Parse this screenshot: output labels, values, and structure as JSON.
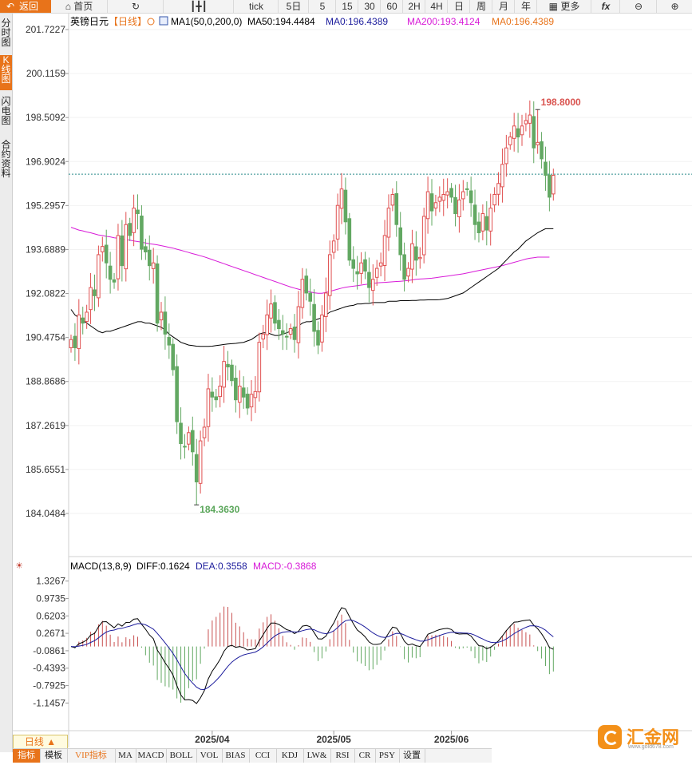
{
  "toolbar": {
    "back": "返回",
    "home": "首页",
    "items": [
      "tick",
      "5日",
      "5",
      "15",
      "30",
      "60",
      "2H",
      "4H",
      "日",
      "周",
      "月",
      "年"
    ],
    "more": "更多",
    "fx": "fx"
  },
  "sidebar": [
    "分时图",
    "K线图",
    "闪电图",
    "合约资料"
  ],
  "sidebar_active": 1,
  "bottom": {
    "daily": "日线 ▲",
    "tabs": [
      "指标",
      "模板",
      "VIP指标",
      "MA",
      "MACD",
      "BOLL",
      "VOL",
      "BIAS",
      "CCI",
      "KDJ",
      "LW&",
      "RSI",
      "CR",
      "PSY",
      "设置"
    ]
  },
  "logo": {
    "name": "汇金网",
    "url": "www.gold678.com"
  },
  "chart_data": {
    "type": "candlestick",
    "title": "英镑日元",
    "period": "日线",
    "legend": [
      {
        "text": "MA1(50,0,200,0)",
        "color": "#000000"
      },
      {
        "text": "MA50:194.4484",
        "color": "#000000"
      },
      {
        "text": "MA0:196.4389",
        "color": "#1c1c9c"
      },
      {
        "text": "MA200:193.4124",
        "color": "#d81ad8"
      },
      {
        "text": "MA0:196.4389",
        "color": "#e8731a"
      }
    ],
    "y_ticks": [
      "201.7227",
      "200.1159",
      "198.5092",
      "196.9024",
      "195.2957",
      "193.6889",
      "192.0822",
      "190.4754",
      "188.8686",
      "187.2619",
      "185.6551",
      "184.0484"
    ],
    "ylim": [
      184.0484,
      201.7227
    ],
    "x_labels": [
      {
        "index": 36,
        "label": "2025/04"
      },
      {
        "index": 67,
        "label": "2025/05"
      },
      {
        "index": 97,
        "label": "2025/06"
      }
    ],
    "last_price": 196.4389,
    "high_mark": {
      "index": 119,
      "value": 198.8,
      "label": "198.8000"
    },
    "low_mark": {
      "index": 32,
      "value": 184.363,
      "label": "184.3630"
    },
    "up_color": "#e05050",
    "down_color": "#62a862",
    "ma50_color": "#000000",
    "ma200_color": "#d81ad8",
    "closes": [
      190.4,
      190.1,
      191.3,
      191.0,
      191.4,
      192.3,
      192.0,
      193.5,
      193.8,
      193.2,
      192.6,
      192.5,
      194.2,
      193.1,
      194.6,
      194.2,
      195.2,
      195.0,
      193.7,
      193.6,
      193.1,
      193.2,
      191.0,
      191.4,
      190.6,
      190.2,
      189.3,
      187.4,
      186.6,
      186.5,
      187.0,
      186.3,
      185.2,
      186.7,
      187.2,
      188.6,
      188.3,
      188.2,
      188.7,
      189.6,
      189.4,
      188.9,
      188.2,
      188.7,
      188.3,
      187.9,
      188.4,
      188.5,
      190.3,
      190.6,
      191.3,
      191.7,
      191.0,
      190.8,
      190.6,
      190.5,
      190.8,
      190.4,
      191.6,
      192.6,
      192.1,
      191.8,
      190.7,
      190.2,
      191.3,
      192.1,
      193.5,
      194.0,
      195.3,
      195.9,
      194.7,
      193.3,
      193.0,
      192.8,
      193.2,
      192.9,
      192.3,
      192.6,
      193.0,
      193.2,
      194.2,
      195.2,
      195.7,
      194.6,
      193.5,
      192.6,
      193.0,
      193.9,
      193.3,
      193.4,
      194.9,
      195.8,
      195.1,
      195.4,
      195.6,
      195.7,
      195.8,
      195.6,
      195.0,
      195.5,
      195.8,
      195.9,
      195.4,
      194.6,
      194.3,
      195.0,
      194.4,
      195.2,
      195.7,
      196.1,
      196.8,
      197.4,
      197.8,
      198.2,
      197.8,
      198.2,
      198.4,
      198.6,
      197.4,
      197.6,
      197.0,
      196.4,
      195.6,
      196.4
    ],
    "ma50": [
      191.5,
      191.3,
      191.2,
      191.1,
      191.0,
      190.9,
      190.8,
      190.7,
      190.65,
      190.7,
      190.7,
      190.75,
      190.8,
      190.85,
      190.9,
      190.95,
      191.0,
      191.05,
      191.05,
      191.0,
      191.0,
      190.95,
      190.9,
      190.85,
      190.75,
      190.6,
      190.5,
      190.4,
      190.3,
      190.25,
      190.2,
      190.18,
      190.16,
      190.15,
      190.15,
      190.15,
      190.16,
      190.18,
      190.2,
      190.22,
      190.24,
      190.25,
      190.26,
      190.28,
      190.3,
      190.35,
      190.4,
      190.5,
      190.6,
      190.65,
      190.65,
      190.6,
      190.55,
      190.55,
      190.6,
      190.65,
      190.7,
      190.8,
      190.9,
      191.0,
      191.05,
      191.05,
      191.1,
      191.15,
      191.2,
      191.3,
      191.4,
      191.45,
      191.5,
      191.55,
      191.6,
      191.63,
      191.65,
      191.7,
      191.7,
      191.72,
      191.72,
      191.75,
      191.75,
      191.75,
      191.75,
      191.8,
      191.8,
      191.8,
      191.82,
      191.82,
      191.82,
      191.83,
      191.83,
      191.84,
      191.84,
      191.85,
      191.85,
      191.85,
      191.86,
      191.88,
      191.9,
      191.95,
      192.0,
      192.05,
      192.1,
      192.2,
      192.3,
      192.4,
      192.5,
      192.6,
      192.7,
      192.8,
      192.9,
      193.0,
      193.15,
      193.3,
      193.45,
      193.6,
      193.7,
      193.85,
      194.0,
      194.1,
      194.2,
      194.3,
      194.38,
      194.45,
      194.45,
      194.45
    ],
    "ma200": [
      194.5,
      194.45,
      194.4,
      194.37,
      194.33,
      194.3,
      194.26,
      194.22,
      194.2,
      194.17,
      194.15,
      194.12,
      194.1,
      194.07,
      194.05,
      194.03,
      194.0,
      193.98,
      193.96,
      193.93,
      193.9,
      193.88,
      193.86,
      193.83,
      193.8,
      193.77,
      193.74,
      193.7,
      193.66,
      193.62,
      193.58,
      193.54,
      193.5,
      193.46,
      193.42,
      193.37,
      193.32,
      193.27,
      193.22,
      193.17,
      193.12,
      193.07,
      193.02,
      192.97,
      192.92,
      192.87,
      192.82,
      192.77,
      192.72,
      192.67,
      192.62,
      192.57,
      192.52,
      192.47,
      192.42,
      192.37,
      192.32,
      192.28,
      192.24,
      192.2,
      192.17,
      192.14,
      192.11,
      192.09,
      192.09,
      192.12,
      192.16,
      192.2,
      192.24,
      192.28,
      192.31,
      192.33,
      192.35,
      192.37,
      192.39,
      192.41,
      192.43,
      192.45,
      192.47,
      192.48,
      192.49,
      192.5,
      192.51,
      192.52,
      192.53,
      192.54,
      192.56,
      192.58,
      192.6,
      192.61,
      192.62,
      192.63,
      192.64,
      192.66,
      192.68,
      192.7,
      192.72,
      192.74,
      192.76,
      192.78,
      192.8,
      192.83,
      192.86,
      192.89,
      192.92,
      192.95,
      192.98,
      193.01,
      193.04,
      193.07,
      193.1,
      193.14,
      193.18,
      193.22,
      193.26,
      193.3,
      193.34,
      193.37,
      193.39,
      193.41,
      193.41,
      193.41,
      193.41
    ]
  },
  "macd": {
    "title": "MACD(13,8,9)",
    "diff_label": "DIFF:0.1624",
    "dea_label": "DEA:0.3558",
    "macd_label": "MACD:-0.3868",
    "diff_color": "#000000",
    "dea_color": "#1c1c9c",
    "macd_color": "#d81ad8",
    "y_ticks": [
      "1.3267",
      "0.9735",
      "0.6203",
      "0.2671",
      "-0.0861",
      "-0.4393",
      "-0.7925",
      "-1.1457"
    ],
    "ylim": [
      -1.35,
      1.45
    ]
  }
}
